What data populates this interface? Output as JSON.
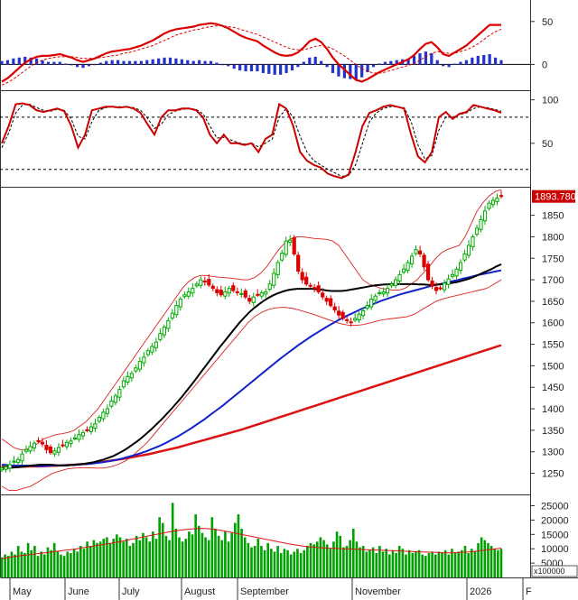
{
  "chart_data": [
    {
      "type": "line",
      "panel": "macd",
      "yticks": [
        0,
        50
      ],
      "ylim": [
        -30,
        75
      ],
      "series": [],
      "macd": [
        -20,
        -16,
        -10,
        -4,
        2,
        6,
        9,
        10,
        10,
        11,
        12,
        10,
        8,
        5,
        3,
        5,
        7,
        10,
        13,
        15,
        16,
        17,
        18,
        20,
        22,
        25,
        28,
        32,
        36,
        39,
        41,
        42,
        43,
        44,
        46,
        47,
        48,
        47,
        45,
        42,
        38,
        34,
        31,
        29,
        27,
        22,
        18,
        14,
        11,
        10,
        11,
        14,
        20,
        27,
        30,
        26,
        18,
        8,
        0,
        -6,
        -12,
        -18,
        -20,
        -17,
        -13,
        -9,
        -6,
        -3,
        0,
        3,
        6,
        11,
        18,
        24,
        26,
        20,
        12,
        10,
        14,
        18,
        22,
        28,
        34,
        40,
        46,
        46,
        46
      ],
      "signal": [
        -24,
        -21,
        -17,
        -12,
        -7,
        -2,
        2,
        5,
        7,
        8,
        9,
        9,
        9,
        8,
        7,
        7,
        7,
        8,
        9,
        10,
        11,
        13,
        14,
        16,
        18,
        20,
        22,
        25,
        28,
        31,
        34,
        36,
        38,
        40,
        41,
        43,
        44,
        45,
        45,
        44,
        43,
        41,
        39,
        37,
        35,
        32,
        29,
        26,
        23,
        20,
        18,
        17,
        17,
        19,
        21,
        22,
        21,
        18,
        14,
        10,
        5,
        0,
        -5,
        -8,
        -10,
        -10,
        -9,
        -7,
        -5,
        -3,
        -1,
        1,
        5,
        9,
        13,
        15,
        14,
        13,
        13,
        15,
        17,
        20,
        24,
        29,
        34,
        38,
        41
      ],
      "histogram": [
        4,
        5,
        7,
        8,
        9,
        8,
        7,
        5,
        3,
        3,
        3,
        1,
        -1,
        -3,
        -4,
        -2,
        0,
        2,
        4,
        5,
        5,
        4,
        4,
        4,
        4,
        5,
        6,
        7,
        8,
        8,
        7,
        6,
        5,
        4,
        5,
        4,
        4,
        2,
        0,
        -2,
        -5,
        -7,
        -8,
        -8,
        -8,
        -10,
        -11,
        -12,
        -12,
        -10,
        -7,
        -3,
        3,
        8,
        9,
        4,
        -3,
        -10,
        -14,
        -16,
        -17,
        -18,
        -15,
        -9,
        -3,
        1,
        3,
        4,
        5,
        6,
        7,
        10,
        13,
        15,
        13,
        5,
        -2,
        -3,
        1,
        3,
        5,
        8,
        10,
        11,
        12,
        8,
        5
      ]
    },
    {
      "type": "line",
      "panel": "stochastic",
      "yticks": [
        50,
        100
      ],
      "ylim": [
        0,
        110
      ],
      "reference_lines": [
        80,
        20
      ],
      "k": [
        50,
        70,
        95,
        96,
        94,
        88,
        86,
        88,
        90,
        87,
        70,
        45,
        60,
        88,
        90,
        92,
        92,
        91,
        92,
        90,
        85,
        72,
        60,
        80,
        88,
        88,
        90,
        90,
        88,
        80,
        60,
        50,
        60,
        50,
        50,
        48,
        50,
        40,
        55,
        60,
        95,
        90,
        70,
        40,
        30,
        25,
        22,
        15,
        12,
        10,
        14,
        40,
        70,
        85,
        88,
        92,
        94,
        92,
        90,
        60,
        35,
        28,
        40,
        80,
        86,
        78,
        84,
        86,
        94,
        92,
        90,
        88,
        85
      ],
      "d": [
        45,
        62,
        85,
        94,
        95,
        91,
        88,
        87,
        89,
        88,
        78,
        58,
        55,
        75,
        88,
        91,
        92,
        92,
        92,
        91,
        88,
        79,
        67,
        72,
        83,
        87,
        89,
        90,
        89,
        84,
        70,
        56,
        57,
        54,
        51,
        49,
        50,
        46,
        50,
        55,
        80,
        90,
        80,
        58,
        40,
        30,
        25,
        20,
        16,
        12,
        13,
        25,
        50,
        75,
        85,
        90,
        92,
        92,
        91,
        75,
        48,
        32,
        36,
        65,
        80,
        80,
        83,
        85,
        90,
        92,
        91,
        89,
        87
      ]
    },
    {
      "type": "candlestick",
      "panel": "price",
      "yticks": [
        1250,
        1300,
        1350,
        1400,
        1450,
        1500,
        1550,
        1600,
        1650,
        1700,
        1750,
        1800,
        1850
      ],
      "ylim": [
        1205,
        1910
      ],
      "last_price": "1893.780",
      "close": [
        1262,
        1265,
        1270,
        1278,
        1282,
        1295,
        1305,
        1312,
        1320,
        1325,
        1318,
        1305,
        1298,
        1302,
        1310,
        1315,
        1322,
        1325,
        1332,
        1340,
        1345,
        1350,
        1358,
        1365,
        1380,
        1392,
        1400,
        1418,
        1430,
        1445,
        1465,
        1475,
        1482,
        1495,
        1510,
        1520,
        1535,
        1545,
        1555,
        1575,
        1590,
        1605,
        1622,
        1640,
        1655,
        1665,
        1672,
        1680,
        1690,
        1700,
        1695,
        1688,
        1680,
        1670,
        1665,
        1672,
        1680,
        1675,
        1670,
        1668,
        1660,
        1650,
        1660,
        1665,
        1670,
        1672,
        1690,
        1715,
        1740,
        1762,
        1790,
        1792,
        1760,
        1720,
        1700,
        1690,
        1685,
        1680,
        1672,
        1660,
        1650,
        1640,
        1630,
        1618,
        1610,
        1605,
        1600,
        1610,
        1620,
        1628,
        1640,
        1655,
        1662,
        1670,
        1672,
        1680,
        1690,
        1700,
        1712,
        1725,
        1740,
        1755,
        1770,
        1760,
        1730,
        1700,
        1685,
        1675,
        1680,
        1692,
        1702,
        1712,
        1725,
        1740,
        1760,
        1780,
        1800,
        1820,
        1840,
        1860,
        1878,
        1885,
        1890,
        1893.78
      ],
      "sma_black": [
        1262,
        1262,
        1263,
        1264,
        1265,
        1266,
        1268,
        1269,
        1270,
        1270,
        1270,
        1269,
        1268,
        1268,
        1269,
        1270,
        1271,
        1272,
        1274,
        1276,
        1279,
        1282,
        1286,
        1290,
        1296,
        1302,
        1309,
        1317,
        1325,
        1334,
        1344,
        1354,
        1365,
        1376,
        1388,
        1400,
        1413,
        1426,
        1440,
        1454,
        1469,
        1484,
        1499,
        1514,
        1529,
        1544,
        1558,
        1572,
        1586,
        1600,
        1612,
        1624,
        1634,
        1643,
        1651,
        1658,
        1664,
        1669,
        1673,
        1676,
        1678,
        1679,
        1679,
        1679,
        1679,
        1678,
        1677,
        1675,
        1674,
        1674,
        1674,
        1675,
        1677,
        1679,
        1681,
        1683,
        1685,
        1687,
        1688,
        1689,
        1690,
        1690,
        1690,
        1690,
        1690,
        1690,
        1689,
        1689,
        1688,
        1688,
        1689,
        1690,
        1691,
        1693,
        1695,
        1698,
        1701,
        1705,
        1710,
        1715,
        1720,
        1725,
        1731,
        1736
      ],
      "sma_blue": [
        1270,
        1269,
        1268,
        1268,
        1268,
        1267,
        1267,
        1267,
        1268,
        1268,
        1269,
        1269,
        1270,
        1271,
        1272,
        1274,
        1276,
        1278,
        1281,
        1284,
        1288,
        1292,
        1297,
        1302,
        1308,
        1314,
        1321,
        1329,
        1337,
        1346,
        1355,
        1365,
        1375,
        1386,
        1397,
        1408,
        1420,
        1432,
        1444,
        1456,
        1468,
        1480,
        1492,
        1504,
        1516,
        1527,
        1538,
        1549,
        1559,
        1569,
        1578,
        1587,
        1596,
        1604,
        1612,
        1619,
        1626,
        1633,
        1639,
        1645,
        1651,
        1656,
        1661,
        1666,
        1670,
        1674,
        1678,
        1682,
        1686,
        1689,
        1692,
        1696,
        1699,
        1703,
        1706,
        1710,
        1713,
        1716,
        1719,
        1722
      ],
      "sma_red": [
        1265,
        1265,
        1265,
        1266,
        1266,
        1267,
        1268,
        1269,
        1270,
        1272,
        1274,
        1277,
        1280,
        1283,
        1287,
        1291,
        1295,
        1300,
        1305,
        1310,
        1316,
        1322,
        1328,
        1334,
        1340,
        1346,
        1352,
        1359,
        1366,
        1373,
        1380,
        1387,
        1394,
        1401,
        1408,
        1415,
        1422,
        1429,
        1436,
        1443,
        1450,
        1457,
        1464,
        1471,
        1478,
        1485,
        1492,
        1499,
        1506,
        1513,
        1520,
        1527,
        1534,
        1541,
        1548
      ],
      "bb_upper": [
        1330,
        1320,
        1310,
        1305,
        1305,
        1310,
        1320,
        1330,
        1335,
        1340,
        1342,
        1345,
        1350,
        1360,
        1370,
        1385,
        1400,
        1420,
        1440,
        1460,
        1480,
        1500,
        1520,
        1540,
        1560,
        1580,
        1600,
        1620,
        1640,
        1660,
        1680,
        1695,
        1705,
        1710,
        1710,
        1708,
        1706,
        1705,
        1704,
        1702,
        1700,
        1700,
        1705,
        1715,
        1730,
        1750,
        1770,
        1785,
        1795,
        1800,
        1800,
        1798,
        1796,
        1795,
        1794,
        1790,
        1780,
        1760,
        1740,
        1720,
        1700,
        1690,
        1685,
        1680,
        1678,
        1676,
        1676,
        1680,
        1690,
        1700,
        1715,
        1730,
        1748,
        1762,
        1770,
        1775,
        1780,
        1800,
        1830,
        1860,
        1880,
        1895,
        1905,
        1910
      ],
      "bb_lower": [
        1220,
        1210,
        1210,
        1215,
        1220,
        1230,
        1240,
        1250,
        1255,
        1260,
        1262,
        1263,
        1263,
        1262,
        1262,
        1265,
        1270,
        1278,
        1290,
        1305,
        1320,
        1340,
        1360,
        1380,
        1400,
        1420,
        1440,
        1460,
        1480,
        1500,
        1520,
        1540,
        1560,
        1580,
        1600,
        1615,
        1625,
        1632,
        1635,
        1636,
        1634,
        1630,
        1625,
        1620,
        1614,
        1608,
        1602,
        1597,
        1594,
        1594,
        1596,
        1600,
        1605,
        1608,
        1610,
        1612,
        1614,
        1620,
        1630,
        1640,
        1650,
        1656,
        1660,
        1664,
        1668,
        1672,
        1676,
        1680,
        1690,
        1700
      ]
    },
    {
      "type": "bar",
      "panel": "volume",
      "yticks": [
        5000,
        10000,
        15000,
        20000,
        25000
      ],
      "ylim": [
        0,
        28000
      ],
      "unit_label": "x100000",
      "values": [
        7000,
        8000,
        7500,
        9000,
        8000,
        11000,
        9000,
        8500,
        12000,
        9500,
        11000,
        7500,
        9000,
        8000,
        10500,
        9500,
        12000,
        9000,
        8000,
        7500,
        9000,
        8500,
        10000,
        9000,
        11000,
        10000,
        12500,
        11000,
        13000,
        12000,
        12500,
        13500,
        14000,
        12000,
        13500,
        15000,
        14000,
        12500,
        13500,
        11000,
        12000,
        14500,
        13000,
        15500,
        14000,
        12500,
        16000,
        13500,
        21000,
        19000,
        14500,
        13000,
        26000,
        17000,
        14000,
        12500,
        13500,
        16000,
        15000,
        22000,
        18000,
        15500,
        14000,
        13000,
        21000,
        17000,
        14500,
        13000,
        16000,
        12500,
        15500,
        19000,
        22000,
        17000,
        14000,
        12000,
        10500,
        11000,
        13500,
        11000,
        9500,
        12000,
        10000,
        9000,
        11000,
        8500,
        10000,
        9500,
        8000,
        9000,
        10000,
        8500,
        9500,
        11000,
        12000,
        11500,
        12500,
        14000,
        13000,
        11500,
        10000,
        12500,
        16000,
        14500,
        10500,
        11000,
        13000,
        17000,
        12500,
        10500,
        11000,
        9000,
        9500,
        10500,
        8500,
        11000,
        9000,
        10000,
        8000,
        9500,
        8500,
        11000,
        10000,
        8000,
        9500,
        8500,
        9000,
        9500,
        8000,
        7500,
        8500,
        9000,
        8000,
        9000,
        8500,
        9500,
        8000,
        10000,
        8500,
        9000,
        9500,
        11000,
        8500,
        10000,
        9000,
        12000,
        14000,
        13000,
        12000,
        11000,
        10000,
        9500,
        10000
      ],
      "ma": [
        6500,
        7000,
        7400,
        7700,
        8000,
        8300,
        8600,
        8900,
        9200,
        9500,
        9800,
        10200,
        10600,
        11000,
        11400,
        11800,
        12200,
        12700,
        13200,
        13700,
        14200,
        14700,
        15200,
        15700,
        16100,
        16500,
        16800,
        17000,
        17100,
        17000,
        16700,
        16300,
        15800,
        15300,
        14800,
        14300,
        13800,
        13300,
        12800,
        12300,
        11800,
        11400,
        11000,
        10700,
        10500,
        10300,
        10200,
        10100,
        10000,
        9900,
        9800,
        9700,
        9600,
        9500,
        9400,
        9300,
        9200,
        9100,
        9000,
        8900,
        8800,
        8700,
        8600,
        8600,
        8700,
        8800,
        9000,
        9300,
        9600,
        9900,
        10200
      ]
    }
  ],
  "x_axis": {
    "months": [
      "May",
      "June",
      "July",
      "August",
      "September",
      "November",
      "2026",
      "F"
    ]
  },
  "colors": {
    "up": "#00aa00",
    "down": "#dd0000",
    "macd_line": "#dd0000",
    "histogram": "#2233cc",
    "sma_short": "#000000",
    "sma_mid": "#1122cc",
    "sma_long": "#dd1111",
    "bollinger": "#dd2222",
    "volume_bar": "#00a000",
    "volume_ma": "#dd1111",
    "price_tag": "#cc0000"
  }
}
